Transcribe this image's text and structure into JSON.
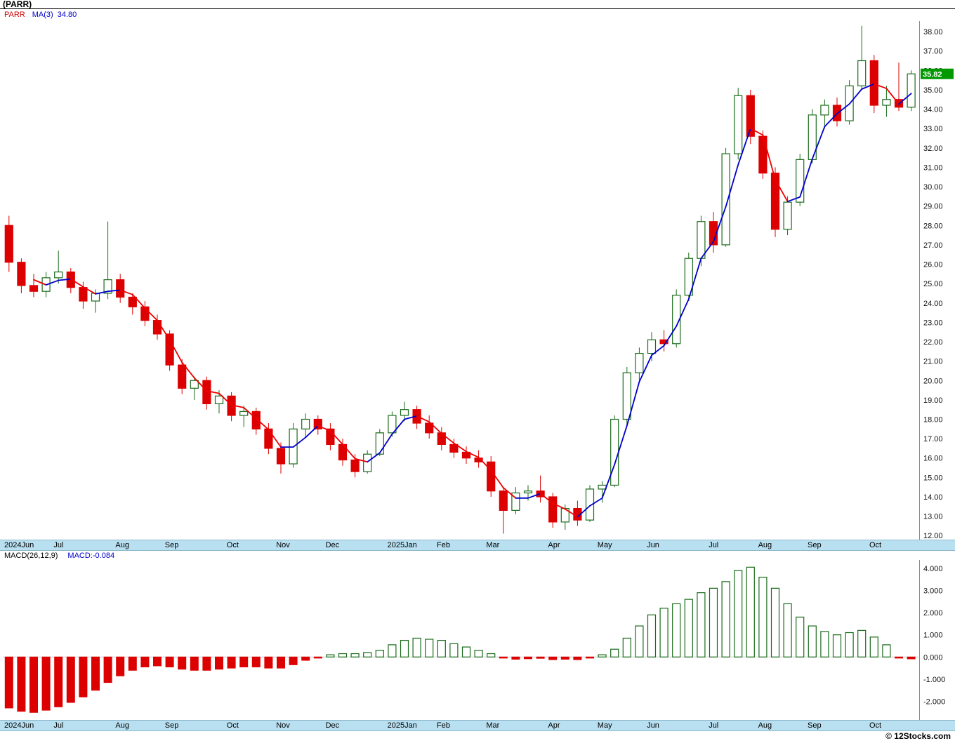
{
  "header": {
    "title": "(PARR)",
    "symbol": "PARR",
    "ma_label": "MA(3)",
    "ma_value": "34.80"
  },
  "macd_header": {
    "label": "MACD(26,12,9)",
    "value": "MACD:-0.084"
  },
  "footer": {
    "copyright": "© 12Stocks.com"
  },
  "price_marker": {
    "value": "35.82",
    "bg": "#009900",
    "fg": "#ffffff"
  },
  "colors": {
    "up_edge": "#1a6b1a",
    "down": "#dd0000",
    "ma_up": "#0000cc",
    "ma_down": "#ee0000",
    "axis_text": "#111111",
    "separator": "#888888",
    "zero_line": "#cccccc",
    "strip_bg": "#b9e0f1"
  },
  "chart_data": [
    {
      "type": "candlestick",
      "title": "(PARR)",
      "series_name": "PARR weekly OHLC",
      "ma_period": 3,
      "ma_last_value": 34.8,
      "last_close": 35.82,
      "ylim": [
        11.9,
        38.4
      ],
      "ytick_min": 12,
      "ytick_max": 38,
      "ytick_step": 1,
      "legend_position": "top-left",
      "grid": false,
      "x_labels": [
        {
          "text": "2024Jun",
          "week": 0
        },
        {
          "text": "Jul",
          "week": 4
        },
        {
          "text": "Aug",
          "week": 9
        },
        {
          "text": "Sep",
          "week": 13
        },
        {
          "text": "Oct",
          "week": 18
        },
        {
          "text": "Nov",
          "week": 22
        },
        {
          "text": "Dec",
          "week": 26
        },
        {
          "text": "2025Jan",
          "week": 31
        },
        {
          "text": "Feb",
          "week": 35
        },
        {
          "text": "Mar",
          "week": 39
        },
        {
          "text": "Apr",
          "week": 44
        },
        {
          "text": "May",
          "week": 48
        },
        {
          "text": "Jun",
          "week": 52
        },
        {
          "text": "Jul",
          "week": 57
        },
        {
          "text": "Aug",
          "week": 61
        },
        {
          "text": "Sep",
          "week": 65
        },
        {
          "text": "Oct",
          "week": 70
        }
      ],
      "ohlc": [
        [
          28.0,
          28.5,
          25.6,
          26.1
        ],
        [
          26.1,
          26.3,
          24.5,
          24.9
        ],
        [
          24.9,
          25.5,
          24.3,
          24.6
        ],
        [
          24.6,
          25.6,
          24.3,
          25.3
        ],
        [
          25.3,
          26.7,
          25.0,
          25.6
        ],
        [
          25.6,
          25.8,
          24.5,
          24.8
        ],
        [
          24.8,
          25.1,
          23.7,
          24.1
        ],
        [
          24.1,
          24.7,
          23.5,
          24.5
        ],
        [
          24.5,
          28.2,
          24.2,
          25.2
        ],
        [
          25.2,
          25.5,
          24.0,
          24.3
        ],
        [
          24.3,
          24.5,
          23.4,
          23.8
        ],
        [
          23.8,
          24.1,
          22.8,
          23.1
        ],
        [
          23.1,
          23.4,
          22.1,
          22.4
        ],
        [
          22.4,
          22.6,
          20.5,
          20.8
        ],
        [
          20.8,
          21.1,
          19.3,
          19.6
        ],
        [
          19.6,
          20.2,
          19.0,
          20.0
        ],
        [
          20.0,
          20.2,
          18.5,
          18.8
        ],
        [
          18.8,
          19.5,
          18.3,
          19.2
        ],
        [
          19.2,
          19.4,
          17.9,
          18.2
        ],
        [
          18.2,
          18.7,
          17.6,
          18.4
        ],
        [
          18.4,
          18.6,
          17.2,
          17.5
        ],
        [
          17.5,
          17.8,
          16.2,
          16.5
        ],
        [
          16.5,
          16.8,
          15.2,
          15.7
        ],
        [
          15.7,
          17.8,
          15.5,
          17.5
        ],
        [
          17.5,
          18.3,
          17.1,
          18.0
        ],
        [
          18.0,
          18.2,
          17.2,
          17.5
        ],
        [
          17.5,
          17.8,
          16.4,
          16.7
        ],
        [
          16.7,
          17.0,
          15.6,
          15.9
        ],
        [
          15.9,
          16.2,
          15.0,
          15.3
        ],
        [
          15.3,
          16.4,
          15.2,
          16.2
        ],
        [
          16.2,
          17.5,
          16.1,
          17.3
        ],
        [
          17.3,
          18.4,
          17.1,
          18.2
        ],
        [
          18.2,
          18.9,
          17.9,
          18.5
        ],
        [
          18.5,
          18.7,
          17.5,
          17.8
        ],
        [
          17.8,
          18.2,
          17.0,
          17.3
        ],
        [
          17.3,
          17.6,
          16.4,
          16.7
        ],
        [
          16.7,
          17.0,
          16.0,
          16.3
        ],
        [
          16.3,
          16.6,
          15.7,
          16.0
        ],
        [
          16.0,
          16.4,
          15.5,
          15.8
        ],
        [
          15.8,
          16.1,
          14.0,
          14.3
        ],
        [
          14.3,
          14.5,
          12.1,
          13.3
        ],
        [
          13.3,
          14.5,
          13.1,
          14.2
        ],
        [
          14.2,
          14.6,
          13.8,
          14.3
        ],
        [
          14.3,
          15.1,
          13.7,
          14.0
        ],
        [
          14.0,
          14.2,
          12.4,
          12.7
        ],
        [
          12.7,
          13.6,
          12.3,
          13.4
        ],
        [
          13.4,
          13.8,
          12.5,
          12.8
        ],
        [
          12.8,
          14.6,
          12.7,
          14.4
        ],
        [
          14.4,
          14.8,
          13.7,
          14.6
        ],
        [
          14.6,
          18.2,
          14.5,
          18.0
        ],
        [
          18.0,
          20.7,
          17.7,
          20.4
        ],
        [
          20.4,
          21.7,
          20.0,
          21.4
        ],
        [
          21.4,
          22.5,
          21.0,
          22.1
        ],
        [
          22.1,
          22.6,
          21.5,
          21.9
        ],
        [
          21.9,
          24.7,
          21.7,
          24.4
        ],
        [
          24.4,
          26.6,
          24.1,
          26.3
        ],
        [
          26.3,
          28.5,
          25.9,
          28.2
        ],
        [
          28.2,
          28.7,
          26.6,
          27.0
        ],
        [
          27.0,
          32.0,
          26.9,
          31.7
        ],
        [
          31.7,
          35.1,
          31.4,
          34.7
        ],
        [
          34.7,
          35.0,
          32.2,
          32.6
        ],
        [
          32.6,
          32.9,
          30.4,
          30.7
        ],
        [
          30.7,
          31.0,
          27.4,
          27.8
        ],
        [
          27.8,
          29.5,
          27.5,
          29.2
        ],
        [
          29.2,
          31.7,
          29.0,
          31.4
        ],
        [
          31.4,
          34.0,
          31.2,
          33.7
        ],
        [
          33.7,
          34.5,
          33.0,
          34.2
        ],
        [
          34.2,
          34.6,
          33.1,
          33.4
        ],
        [
          33.4,
          35.5,
          33.2,
          35.2
        ],
        [
          35.2,
          38.3,
          35.0,
          36.5
        ],
        [
          36.5,
          36.8,
          33.8,
          34.2
        ],
        [
          34.2,
          35.2,
          33.6,
          34.5
        ],
        [
          34.5,
          36.4,
          33.9,
          34.1
        ],
        [
          34.1,
          36.0,
          33.9,
          35.82
        ]
      ]
    },
    {
      "type": "bar",
      "name": "MACD(26,12,9) histogram",
      "last_value": -0.084,
      "ylim": [
        -2.65,
        4.25
      ],
      "yticks": [
        4,
        3,
        2,
        1,
        0,
        -1,
        -2
      ],
      "grid": false,
      "values": [
        -2.3,
        -2.45,
        -2.5,
        -2.4,
        -2.25,
        -2.05,
        -1.8,
        -1.5,
        -1.15,
        -0.85,
        -0.6,
        -0.45,
        -0.4,
        -0.45,
        -0.55,
        -0.6,
        -0.6,
        -0.55,
        -0.5,
        -0.45,
        -0.45,
        -0.5,
        -0.5,
        -0.35,
        -0.15,
        -0.05,
        0.1,
        0.15,
        0.15,
        0.2,
        0.3,
        0.55,
        0.75,
        0.85,
        0.8,
        0.75,
        0.6,
        0.45,
        0.3,
        0.15,
        -0.05,
        -0.1,
        -0.08,
        -0.06,
        -0.12,
        -0.1,
        -0.12,
        -0.05,
        0.1,
        0.35,
        0.85,
        1.4,
        1.9,
        2.2,
        2.4,
        2.6,
        2.9,
        3.1,
        3.4,
        3.9,
        4.05,
        3.6,
        3.1,
        2.4,
        1.8,
        1.4,
        1.15,
        1.0,
        1.1,
        1.2,
        0.9,
        0.55,
        -0.05,
        -0.084
      ]
    }
  ]
}
